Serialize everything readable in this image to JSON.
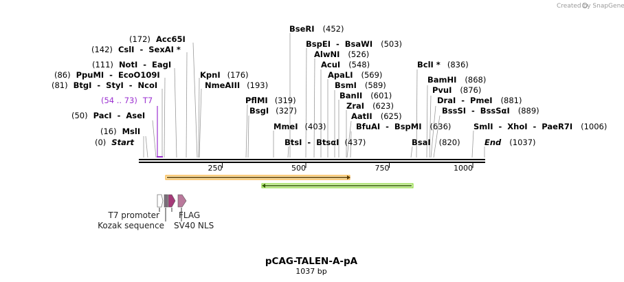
{
  "credit": {
    "created_by": "Created by",
    "brand": "SnapGene"
  },
  "map": {
    "name": "pCAG-TALEN-A-pA",
    "length_label": "1037 bp",
    "length_bp": 1037,
    "axis_ticks": [
      {
        "value": 250,
        "label": "250"
      },
      {
        "value": 500,
        "label": "500"
      },
      {
        "value": 750,
        "label": "750"
      },
      {
        "value": 1000,
        "label": "1000"
      }
    ]
  },
  "site_groups": [
    {
      "pos": "(0)",
      "name": "Start",
      "italic": true
    },
    {
      "pos": "(16)",
      "name": "MslI"
    },
    {
      "pos": "(50)",
      "name": "PacI  -  AseI"
    },
    {
      "pos": "(54 .. 73)",
      "name": "T7",
      "primer": true
    },
    {
      "pos": "(81)",
      "name": "BtgI  -  StyI  -  NcoI"
    },
    {
      "pos": "(86)",
      "name": "PpuMI  -  EcoO109I"
    },
    {
      "pos": "(111)",
      "name": "NotI  -  EagI"
    },
    {
      "pos": "(142)",
      "name": "CslI  -  SexAI *"
    },
    {
      "pos": "(172)",
      "name": "Acc65I"
    },
    {
      "pos": "(193)",
      "name": "NmeAIII"
    },
    {
      "pos": "(176)",
      "name": "KpnI"
    },
    {
      "pos": "(319)",
      "name": "PflMI"
    },
    {
      "pos": "(327)",
      "name": "BsgI"
    },
    {
      "pos": "(403)",
      "name": "MmeI"
    },
    {
      "pos": "(437)",
      "name": "BtsI  -  BtsαI"
    },
    {
      "pos": "(452)",
      "name": "BseRI"
    },
    {
      "pos": "(503)",
      "name": "BspEI  -  BsaWI"
    },
    {
      "pos": "(526)",
      "name": "AlwNI"
    },
    {
      "pos": "(548)",
      "name": "AcuI"
    },
    {
      "pos": "(569)",
      "name": "ApaLI"
    },
    {
      "pos": "(589)",
      "name": "BsmI"
    },
    {
      "pos": "(601)",
      "name": "BanII"
    },
    {
      "pos": "(623)",
      "name": "ZraI"
    },
    {
      "pos": "(625)",
      "name": "AatII"
    },
    {
      "pos": "(636)",
      "name": "BfuAI  -  BspMI"
    },
    {
      "pos": "(820)",
      "name": "BsaI"
    },
    {
      "pos": "(836)",
      "name": "BclI *"
    },
    {
      "pos": "(868)",
      "name": "BamHI"
    },
    {
      "pos": "(876)",
      "name": "PvuI"
    },
    {
      "pos": "(881)",
      "name": "DraI  -  PmeI"
    },
    {
      "pos": "(889)",
      "name": "BssSI  -  BssSαI"
    },
    {
      "pos": "(1006)",
      "name": "SmlI  -  XhoI  -  PaeR7I"
    },
    {
      "pos": "(1037)",
      "name": "End",
      "italic": true
    }
  ],
  "features": [
    {
      "name": "T7 promoter"
    },
    {
      "name": "Kozak sequence"
    },
    {
      "name": "FLAG"
    },
    {
      "name": "SV40 NLS"
    }
  ],
  "colors": {
    "orange_orf": "#f5a623",
    "green_orf": "#7ed321",
    "primer": "#9b30d0",
    "flag": "#c76ba3",
    "nls": "#b9799b",
    "kozak": "#7a6f7a"
  }
}
